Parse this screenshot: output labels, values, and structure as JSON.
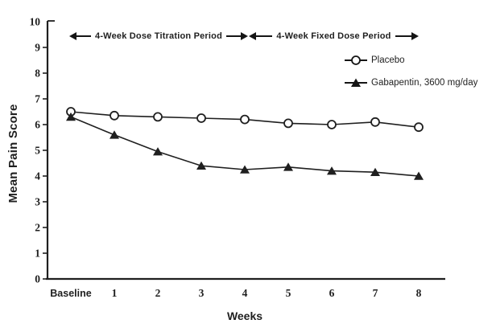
{
  "figure": {
    "background": "#ffffff",
    "line_color": "#1f1f1f"
  },
  "chart_data": {
    "type": "line",
    "title": "",
    "xlabel": "Weeks",
    "ylabel": "Mean Pain Score",
    "x_tick_labels": [
      "Baseline",
      "1",
      "2",
      "3",
      "4",
      "5",
      "6",
      "7",
      "8"
    ],
    "y_ticks": [
      0,
      1,
      2,
      3,
      4,
      5,
      6,
      7,
      8,
      9,
      10
    ],
    "ylim": [
      0,
      10
    ],
    "grid": false,
    "legend_position": "upper-right",
    "series": [
      {
        "name": "Placebo",
        "marker": "open-circle",
        "values": [
          6.5,
          6.35,
          6.3,
          6.25,
          6.2,
          6.05,
          6.0,
          6.1,
          5.9
        ]
      },
      {
        "name": "Gabapentin, 3600 mg/day",
        "marker": "filled-triangle",
        "values": [
          6.3,
          5.6,
          4.95,
          4.4,
          4.25,
          4.35,
          4.2,
          4.15,
          4.0
        ]
      }
    ],
    "annotations": [
      "4-Week Dose Titration Period",
      "4-Week Fixed Dose Period"
    ]
  }
}
